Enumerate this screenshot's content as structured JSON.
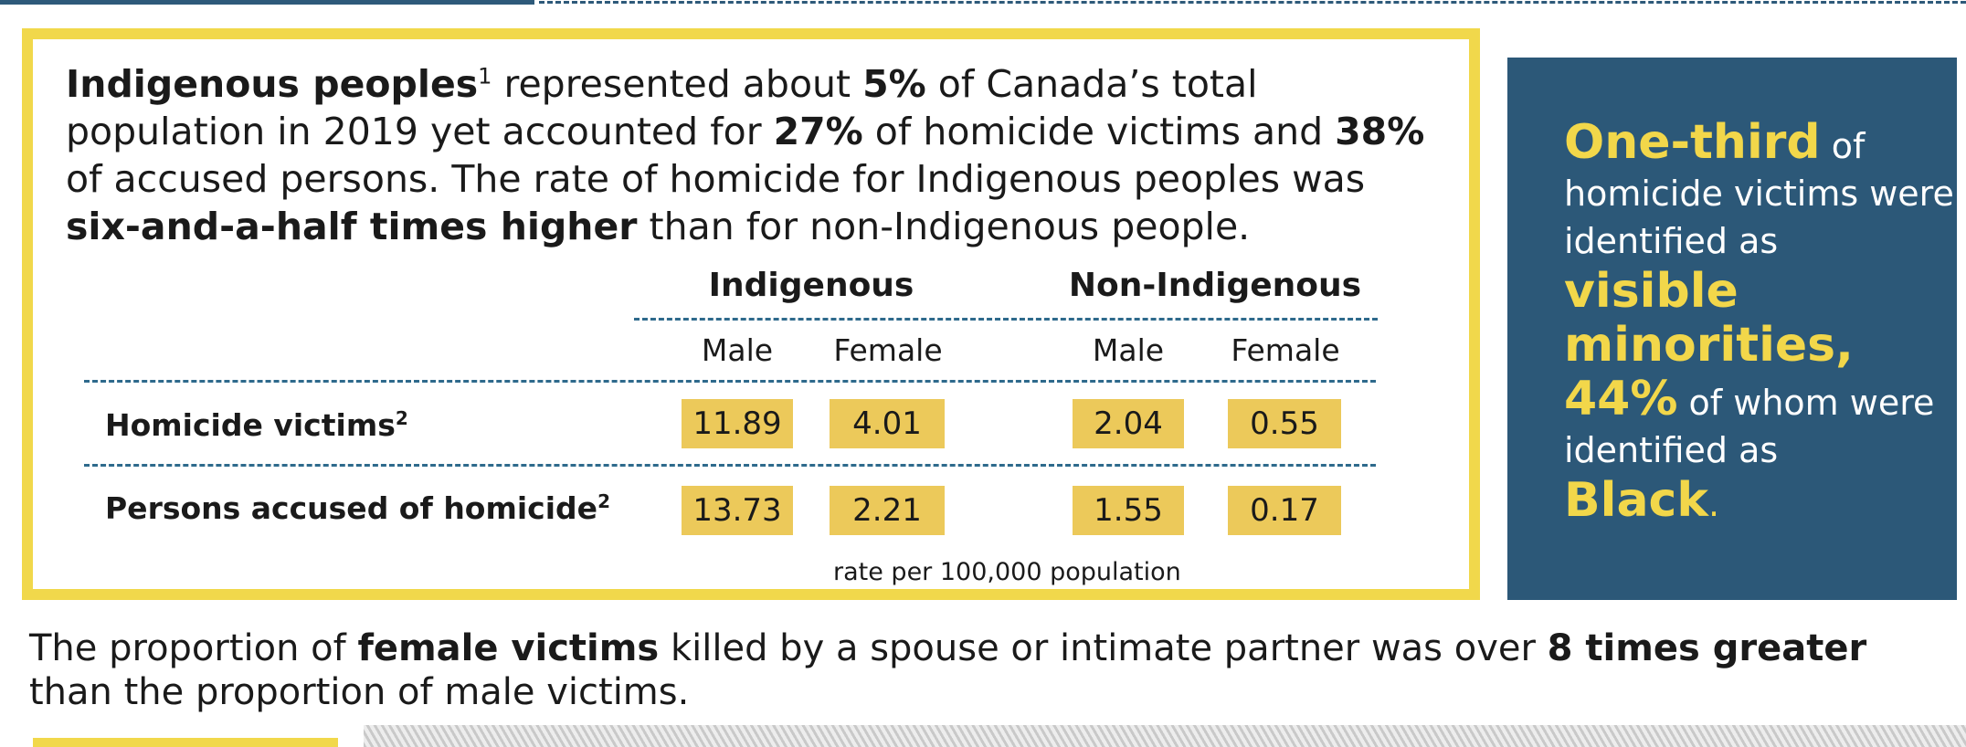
{
  "intro": {
    "p1_bold": "Indigenous peoples",
    "p1_sup": "1",
    "p2": " represented about ",
    "p3_bold": "5%",
    "p4": " of Canada’s total population in 2019 yet accounted for ",
    "p5_bold": "27%",
    "p6": " of homicide victims and ",
    "p7_bold": "38%",
    "p8": " of accused persons. The rate of homicide for Indigenous peoples was ",
    "p9_bold": "six-and-a-half times higher",
    "p10": " than for non-Indigenous people."
  },
  "table": {
    "groups": [
      "Indigenous",
      "Non-Indigenous"
    ],
    "subheaders": [
      "Male",
      "Female",
      "Male",
      "Female"
    ],
    "rows": [
      {
        "label": "Homicide victims",
        "sup": "2",
        "values": [
          "11.89",
          "4.01",
          "2.04",
          "0.55"
        ]
      },
      {
        "label": "Persons accused of homicide",
        "sup": "2",
        "values": [
          "13.73",
          "2.21",
          "1.55",
          "0.17"
        ]
      }
    ],
    "note": "rate per 100,000 population"
  },
  "side": {
    "h1": "One-third",
    "t1": " of homicide victims were identified as ",
    "h2": "visible minorities,",
    "h3": "44%",
    "t2": " of whom were identified as ",
    "h4": "Black",
    "t3": "."
  },
  "bottom": {
    "t1": "The proportion of ",
    "b1": "female victims",
    "t2": " killed by a spouse or intimate partner was over ",
    "b2": "8 times greater",
    "t3": " than the proportion of male victims."
  },
  "colors": {
    "accent_yellow": "#f1d84b",
    "cell_yellow": "#ecc95a",
    "panel_blue": "#2c5878",
    "dash_blue": "#2e6a8c"
  }
}
